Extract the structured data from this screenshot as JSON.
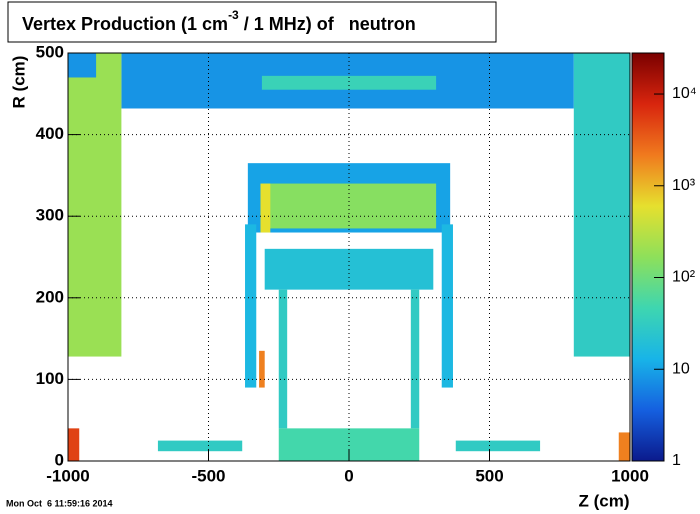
{
  "chart_data": {
    "type": "heatmap",
    "title": [
      "Vertex Production (1 cm",
      "-3",
      " / 1 MHz) of   neutron"
    ],
    "x_label": "Z (cm)",
    "y_label": "R (cm)",
    "xlim": [
      -1000,
      1000
    ],
    "ylim": [
      0,
      500
    ],
    "xticks": [
      -1000,
      -500,
      0,
      500,
      1000
    ],
    "yticks": [
      0,
      100,
      200,
      300,
      400,
      500
    ],
    "grid": true,
    "zlim": [
      1,
      28000
    ],
    "zscale": "log",
    "zticks": [
      1,
      10,
      {
        "value": 100,
        "label": "10²"
      },
      {
        "value": 1000,
        "label": "10³"
      },
      {
        "value": 10000,
        "label": "10⁴"
      }
    ],
    "colormap": [
      "#0b1a8c",
      "#1560e0",
      "#18b4e8",
      "#3ed6b0",
      "#8ee05a",
      "#e6e02e",
      "#f07a1e",
      "#d8250e",
      "#7a0000"
    ],
    "cells": [
      {
        "z": [
          -810,
          800
        ],
        "r": [
          432,
          500
        ],
        "value": 8
      },
      {
        "z": [
          -1000,
          -810
        ],
        "r": [
          128,
          500
        ],
        "value": 200
      },
      {
        "z": [
          -1000,
          -900
        ],
        "r": [
          470,
          500
        ],
        "value": 8
      },
      {
        "z": [
          800,
          1000
        ],
        "r": [
          128,
          500
        ],
        "value": 30
      },
      {
        "z": [
          -310,
          310
        ],
        "r": [
          455,
          472
        ],
        "value": 40
      },
      {
        "z": [
          -360,
          360
        ],
        "r": [
          280,
          365
        ],
        "value": 10
      },
      {
        "z": [
          -310,
          310
        ],
        "r": [
          285,
          340
        ],
        "value": 150
      },
      {
        "z": [
          -315,
          -280
        ],
        "r": [
          280,
          340
        ],
        "value": 600
      },
      {
        "z": [
          -370,
          -330
        ],
        "r": [
          90,
          290
        ],
        "value": 15
      },
      {
        "z": [
          330,
          370
        ],
        "r": [
          90,
          290
        ],
        "value": 15
      },
      {
        "z": [
          -300,
          300
        ],
        "r": [
          210,
          260
        ],
        "value": 20
      },
      {
        "z": [
          -250,
          -220
        ],
        "r": [
          40,
          210
        ],
        "value": 30
      },
      {
        "z": [
          220,
          250
        ],
        "r": [
          40,
          210
        ],
        "value": 30
      },
      {
        "z": [
          -320,
          -300
        ],
        "r": [
          90,
          135
        ],
        "value": 2000
      },
      {
        "z": [
          -680,
          -380
        ],
        "r": [
          12,
          25
        ],
        "value": 30
      },
      {
        "z": [
          380,
          680
        ],
        "r": [
          12,
          25
        ],
        "value": 30
      },
      {
        "z": [
          -250,
          250
        ],
        "r": [
          0,
          40
        ],
        "value": 50
      },
      {
        "z": [
          -1000,
          -960
        ],
        "r": [
          0,
          40
        ],
        "value": 5000
      },
      {
        "z": [
          960,
          1000
        ],
        "r": [
          0,
          35
        ],
        "value": 2000
      }
    ],
    "footer": "Mon Oct  6 11:59:16 2014"
  }
}
